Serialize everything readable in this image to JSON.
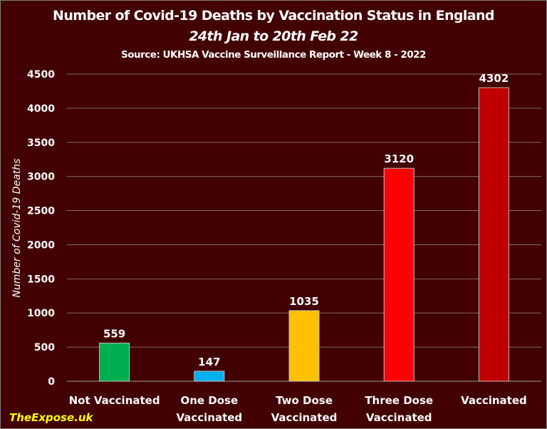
{
  "chart_data": {
    "type": "bar",
    "title": "Number of Covid-19 Deaths by Vaccination Status in England",
    "subtitle": "24th Jan to 20th Feb 22",
    "source": "Source: UKHSA Vaccine Surveillance Report - Week 8 - 2022",
    "xlabel": "",
    "ylabel": "Number of Covid-19 Deaths",
    "ylim": [
      0,
      4500
    ],
    "yticks": [
      0,
      500,
      1000,
      1500,
      2000,
      2500,
      3000,
      3500,
      4000,
      4500
    ],
    "grid": true,
    "categories": [
      [
        "Not Vaccinated"
      ],
      [
        "One Dose",
        "Vaccinated"
      ],
      [
        "Two Dose",
        "Vaccinated"
      ],
      [
        "Three Dose",
        "Vaccinated"
      ],
      [
        "Vaccinated"
      ]
    ],
    "values": [
      559,
      147,
      1035,
      3120,
      4302
    ],
    "colors": [
      "#00b050",
      "#00b0f0",
      "#ffc000",
      "#ff0000",
      "#c00000"
    ]
  },
  "watermark": "TheExpose.uk"
}
